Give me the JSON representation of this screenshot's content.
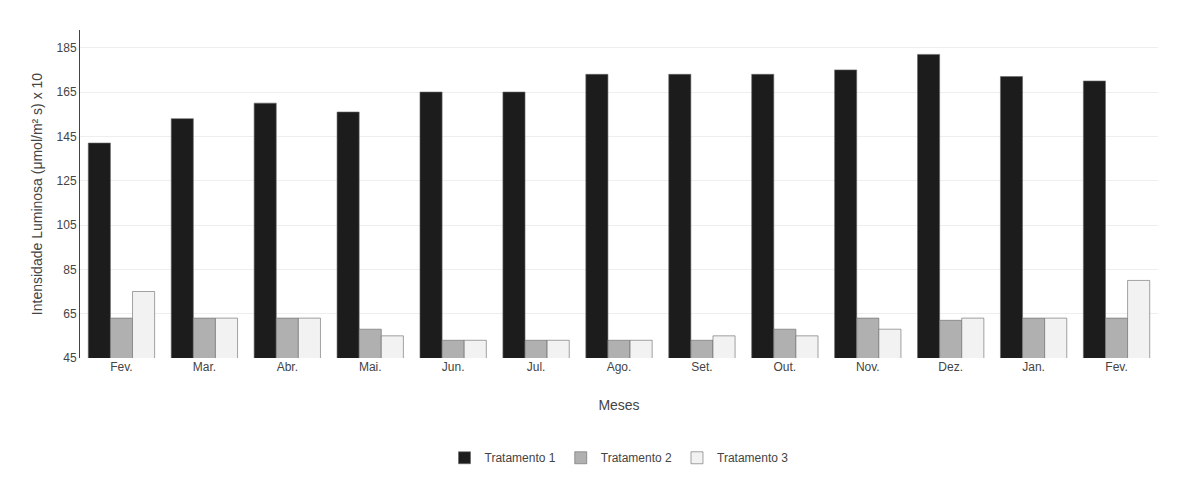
{
  "chart_data": {
    "type": "bar",
    "categories": [
      "Fev.",
      "Mar.",
      "Abr.",
      "Mai.",
      "Jun.",
      "Jul.",
      "Ago.",
      "Set.",
      "Out.",
      "Nov.",
      "Dez.",
      "Jan.",
      "Fev."
    ],
    "series": [
      {
        "name": "Tratamento 1",
        "color": "#1c1c1c",
        "values": [
          142,
          153,
          160,
          156,
          165,
          165,
          173,
          173,
          173,
          175,
          182,
          172,
          170
        ]
      },
      {
        "name": "Tratamento 2",
        "color": "#b0b0b0",
        "values": [
          63,
          63,
          63,
          58,
          53,
          53,
          53,
          53,
          58,
          63,
          62,
          63,
          63
        ]
      },
      {
        "name": "Tratamento 3",
        "color": "#f2f2f2",
        "values": [
          75,
          63,
          63,
          55,
          53,
          53,
          53,
          55,
          55,
          58,
          63,
          63,
          80
        ]
      }
    ],
    "xlabel": "Meses",
    "ylabel": "Intensidade Luminosa (μmol/m² s) x 10",
    "ylim": [
      45,
      193
    ],
    "yticks": [
      45,
      65,
      85,
      105,
      125,
      145,
      165,
      185
    ],
    "grid": true,
    "legend": "bottom"
  }
}
